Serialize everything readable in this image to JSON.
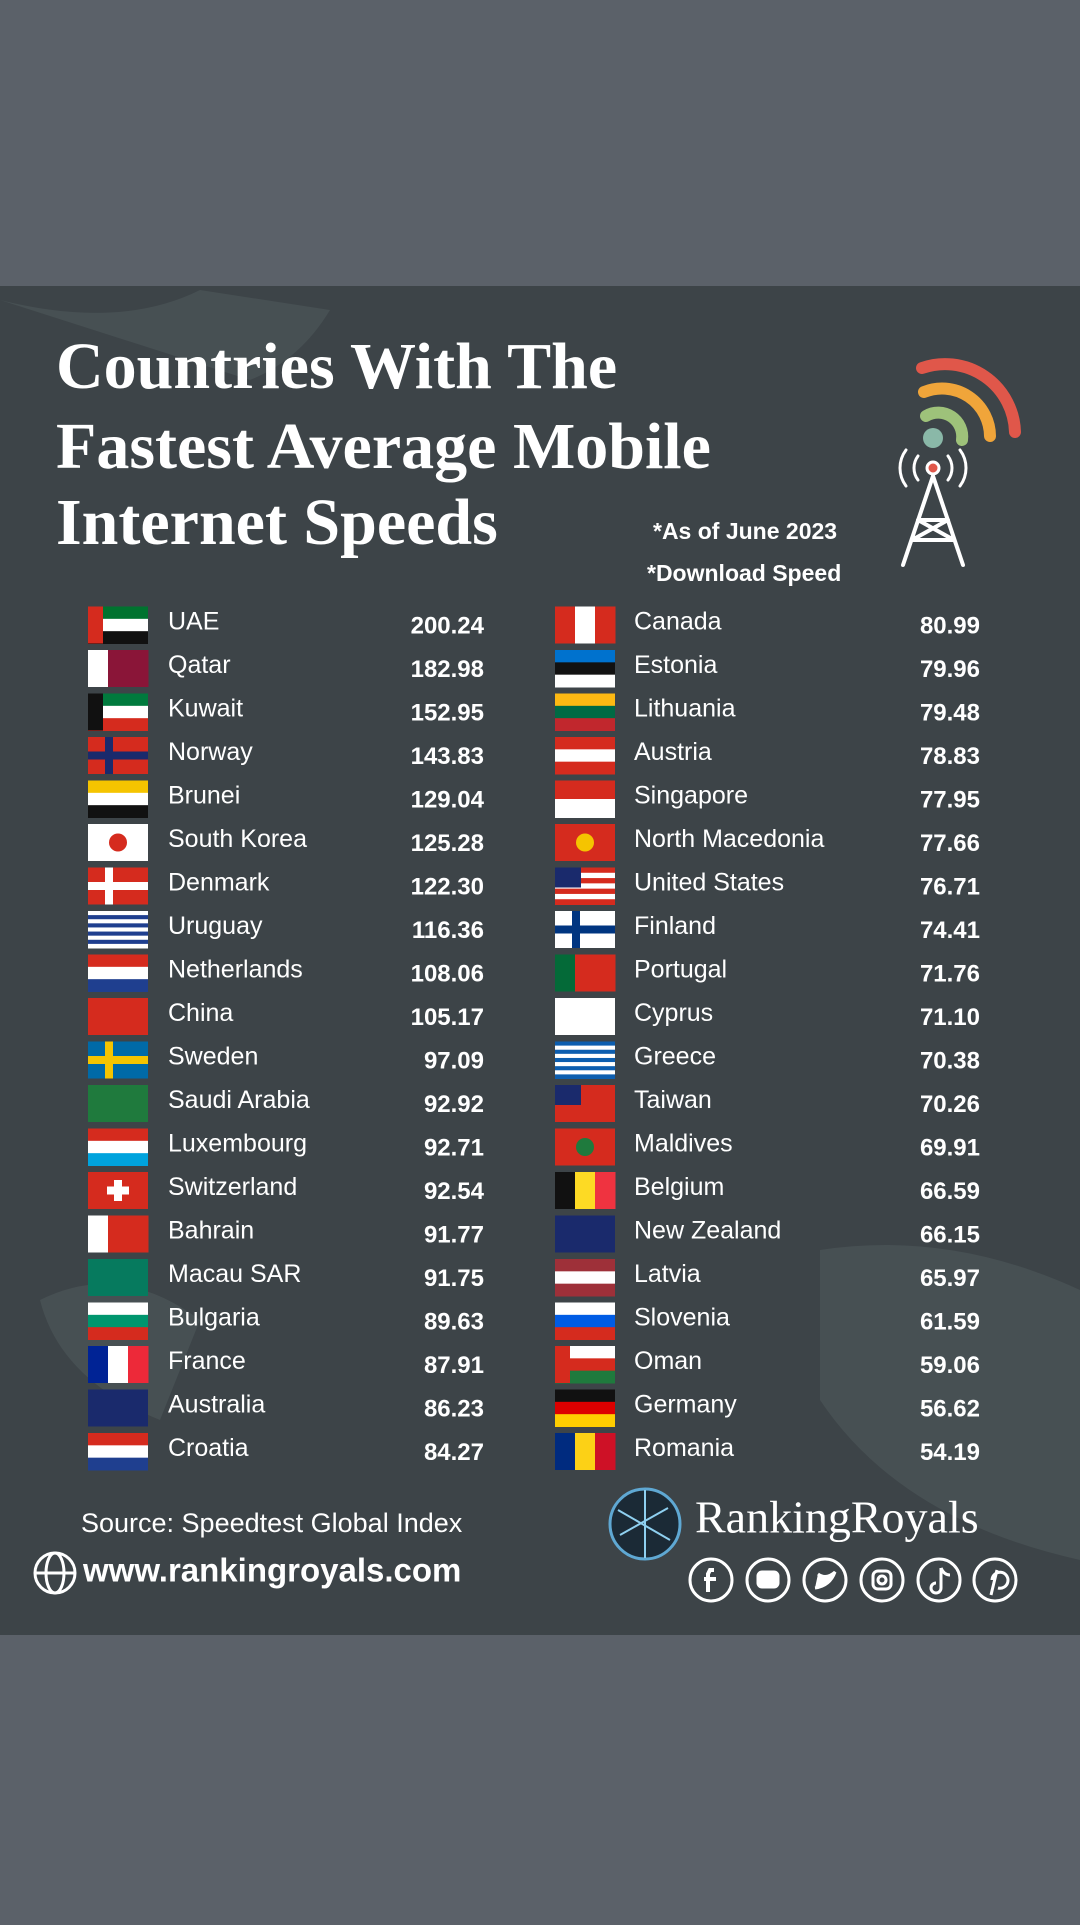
{
  "title_lines": [
    "Countries With The",
    "Fastest Average Mobile",
    "Internet Speeds"
  ],
  "notes": [
    "*As of June 2023",
    "*Download Speed"
  ],
  "left": [
    {
      "country": "UAE",
      "speed": "200.24"
    },
    {
      "country": "Qatar",
      "speed": "182.98"
    },
    {
      "country": "Kuwait",
      "speed": "152.95"
    },
    {
      "country": "Norway",
      "speed": "143.83"
    },
    {
      "country": "Brunei",
      "speed": "129.04"
    },
    {
      "country": "South Korea",
      "speed": "125.28"
    },
    {
      "country": "Denmark",
      "speed": "122.30"
    },
    {
      "country": "Uruguay",
      "speed": "116.36"
    },
    {
      "country": "Netherlands",
      "speed": "108.06"
    },
    {
      "country": "China",
      "speed": "105.17"
    },
    {
      "country": "Sweden",
      "speed": "97.09"
    },
    {
      "country": "Saudi Arabia",
      "speed": "92.92"
    },
    {
      "country": "Luxembourg",
      "speed": "92.71"
    },
    {
      "country": "Switzerland",
      "speed": "92.54"
    },
    {
      "country": "Bahrain",
      "speed": "91.77"
    },
    {
      "country": "Macau SAR",
      "speed": "91.75"
    },
    {
      "country": "Bulgaria",
      "speed": "89.63"
    },
    {
      "country": "France",
      "speed": "87.91"
    },
    {
      "country": "Australia",
      "speed": "86.23"
    },
    {
      "country": "Croatia",
      "speed": "84.27"
    }
  ],
  "right": [
    {
      "country": "Canada",
      "speed": "80.99"
    },
    {
      "country": "Estonia",
      "speed": "79.96"
    },
    {
      "country": "Lithuania",
      "speed": "79.48"
    },
    {
      "country": "Austria",
      "speed": "78.83"
    },
    {
      "country": "Singapore",
      "speed": "77.95"
    },
    {
      "country": "North Macedonia",
      "speed": "77.66"
    },
    {
      "country": "United States",
      "speed": "76.71"
    },
    {
      "country": "Finland",
      "speed": "74.41"
    },
    {
      "country": "Portugal",
      "speed": "71.76"
    },
    {
      "country": "Cyprus",
      "speed": "71.10"
    },
    {
      "country": "Greece",
      "speed": "70.38"
    },
    {
      "country": "Taiwan",
      "speed": "70.26"
    },
    {
      "country": "Maldives",
      "speed": "69.91"
    },
    {
      "country": "Belgium",
      "speed": "66.59"
    },
    {
      "country": "New Zealand",
      "speed": "66.15"
    },
    {
      "country": "Latvia",
      "speed": "65.97"
    },
    {
      "country": "Slovenia",
      "speed": "61.59"
    },
    {
      "country": "Oman",
      "speed": "59.06"
    },
    {
      "country": "Germany",
      "speed": "56.62"
    },
    {
      "country": "Romania",
      "speed": "54.19"
    }
  ],
  "source": "Source: Speedtest Global Index",
  "website": "www.rankingroyals.com",
  "brand": "RankingRoyals"
}
